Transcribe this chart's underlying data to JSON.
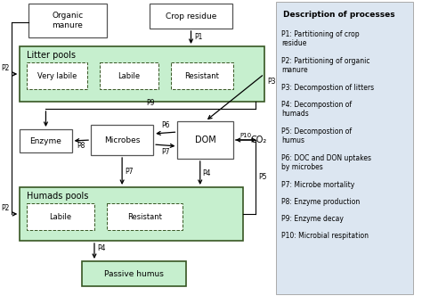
{
  "fig_width": 4.74,
  "fig_height": 3.32,
  "dpi": 100,
  "bg_color": "#ffffff",
  "legend_bg": "#dce6f1",
  "green_fill": "#c6efce",
  "green_border": "#375623",
  "white_fill": "#ffffff",
  "gray_border": "#555555",
  "description_title": "Description of processes",
  "processes": [
    "P1: Partitioning of crop\nresidue",
    "P2: Partitioning of organic\nmanure",
    "P3: Decompostion of litters",
    "P4: Decompostion of\nhumads",
    "P5: Decompostion of\nhumus",
    "P6: DOC and DON uptakes\nby microbes",
    "P7: Microbe mortality",
    "P8: Enzyme production",
    "P9: Enzyme decay",
    "P10: Microbial respitation"
  ]
}
